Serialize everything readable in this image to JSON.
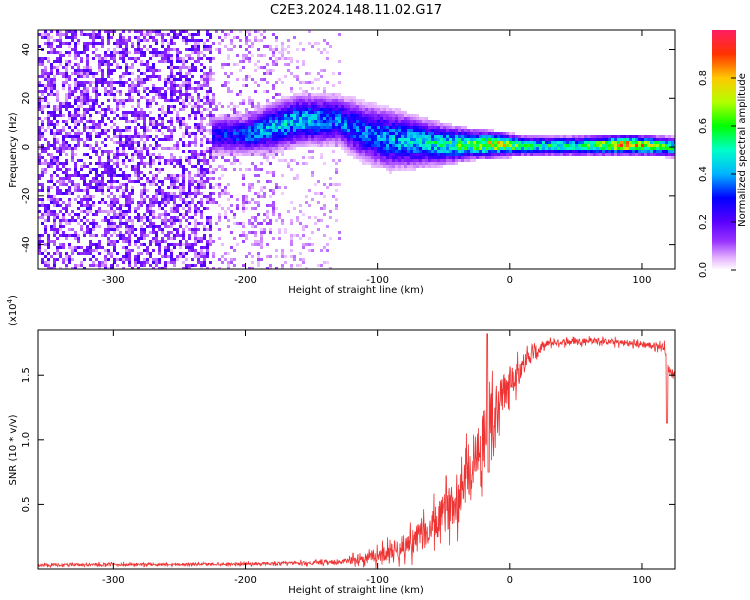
{
  "title": "C2E3.2024.148.11.02.G17",
  "chart_data": [
    {
      "type": "heatmap",
      "xlabel": "Height of straight line (km)",
      "ylabel": "Frequency (Hz)",
      "xlim": [
        -357,
        125
      ],
      "ylim": [
        -50,
        48
      ],
      "x_ticks": [
        -300,
        -200,
        -100,
        0,
        100
      ],
      "x_tick_labels": [
        "-300",
        "-200",
        "-100",
        "0",
        "100"
      ],
      "y_ticks": [
        -40,
        -20,
        0,
        20,
        40
      ],
      "y_tick_labels": [
        "-40",
        "-20",
        "0",
        "20",
        "40"
      ],
      "colorbar": {
        "label": "Normalized spectral amplitude",
        "range": [
          0,
          1
        ],
        "ticks": [
          0.0,
          0.2,
          0.4,
          0.6,
          0.8
        ],
        "tick_labels": [
          "0.0",
          "0.2",
          "0.4",
          "0.6",
          "0.8"
        ],
        "colormap": "rainbow"
      },
      "noise_regions": [
        {
          "x0": -357,
          "x1": -225,
          "density": 0.55,
          "amplitude": 0.15
        },
        {
          "x0": -225,
          "x1": -175,
          "density": 0.3,
          "amplitude": 0.08
        },
        {
          "x0": -175,
          "x1": -128,
          "density": 0.2,
          "amplitude": 0.06
        }
      ],
      "ridge": [
        {
          "x": -225,
          "f": 5,
          "width": 4,
          "amplitude": 0.25
        },
        {
          "x": -200,
          "f": 5,
          "width": 4,
          "amplitude": 0.35
        },
        {
          "x": -180,
          "f": 8,
          "width": 5,
          "amplitude": 0.4
        },
        {
          "x": -160,
          "f": 11,
          "width": 5,
          "amplitude": 0.45
        },
        {
          "x": -130,
          "f": 11,
          "width": 5,
          "amplitude": 0.35
        },
        {
          "x": -110,
          "f": 6,
          "width": 6,
          "amplitude": 0.35
        },
        {
          "x": -90,
          "f": 3,
          "width": 6,
          "amplitude": 0.4
        },
        {
          "x": -70,
          "f": 2,
          "width": 5,
          "amplitude": 0.45
        },
        {
          "x": -50,
          "f": 1,
          "width": 4,
          "amplitude": 0.5
        },
        {
          "x": -30,
          "f": 1,
          "width": 3,
          "amplitude": 0.6
        },
        {
          "x": -10,
          "f": 1,
          "width": 2.5,
          "amplitude": 0.75
        },
        {
          "x": 10,
          "f": 0.5,
          "width": 2,
          "amplitude": 0.55
        },
        {
          "x": 50,
          "f": 0.5,
          "width": 2,
          "amplitude": 0.5
        },
        {
          "x": 90,
          "f": 1,
          "width": 2,
          "amplitude": 0.85
        },
        {
          "x": 125,
          "f": 0,
          "width": 2,
          "amplitude": 0.5
        }
      ]
    },
    {
      "type": "line",
      "xlabel": "Height of straight line (km)",
      "ylabel": "SNR (10 * v/v)",
      "y_multiplier_label": "(x10",
      "y_multiplier_exp": "4",
      "y_multiplier_close": ")",
      "xlim": [
        -357,
        125
      ],
      "ylim": [
        0,
        1.85
      ],
      "x_ticks": [
        -300,
        -200,
        -100,
        0,
        100
      ],
      "x_tick_labels": [
        "-300",
        "-200",
        "-100",
        "0",
        "100"
      ],
      "y_ticks": [
        0.5,
        1.0,
        1.5
      ],
      "y_tick_labels": [
        "0.5",
        "1.0",
        "1.5"
      ],
      "series": [
        {
          "color": "#ee3333",
          "envelope": [
            {
              "x": -357,
              "mean": 0.03,
              "spread": 0.02
            },
            {
              "x": -200,
              "mean": 0.04,
              "spread": 0.02
            },
            {
              "x": -130,
              "mean": 0.05,
              "spread": 0.03
            },
            {
              "x": -100,
              "mean": 0.1,
              "spread": 0.1
            },
            {
              "x": -80,
              "mean": 0.18,
              "spread": 0.17
            },
            {
              "x": -60,
              "mean": 0.3,
              "spread": 0.25
            },
            {
              "x": -40,
              "mean": 0.55,
              "spread": 0.35
            },
            {
              "x": -25,
              "mean": 0.9,
              "spread": 0.45
            },
            {
              "x": -15,
              "mean": 1.15,
              "spread": 0.45
            },
            {
              "x": 0,
              "mean": 1.45,
              "spread": 0.25
            },
            {
              "x": 15,
              "mean": 1.65,
              "spread": 0.12
            },
            {
              "x": 30,
              "mean": 1.75,
              "spread": 0.05
            },
            {
              "x": 60,
              "mean": 1.77,
              "spread": 0.04
            },
            {
              "x": 100,
              "mean": 1.74,
              "spread": 0.05
            },
            {
              "x": 117,
              "mean": 1.72,
              "spread": 0.05
            },
            {
              "x": 120,
              "mean": 1.55,
              "spread": 0.05
            },
            {
              "x": 125,
              "mean": 1.5,
              "spread": 0.04
            }
          ],
          "features": [
            {
              "x": -17,
              "y": 1.82
            },
            {
              "x": -16,
              "y": 0.75
            },
            {
              "x": 119,
              "y": 1.13
            }
          ]
        }
      ]
    }
  ]
}
